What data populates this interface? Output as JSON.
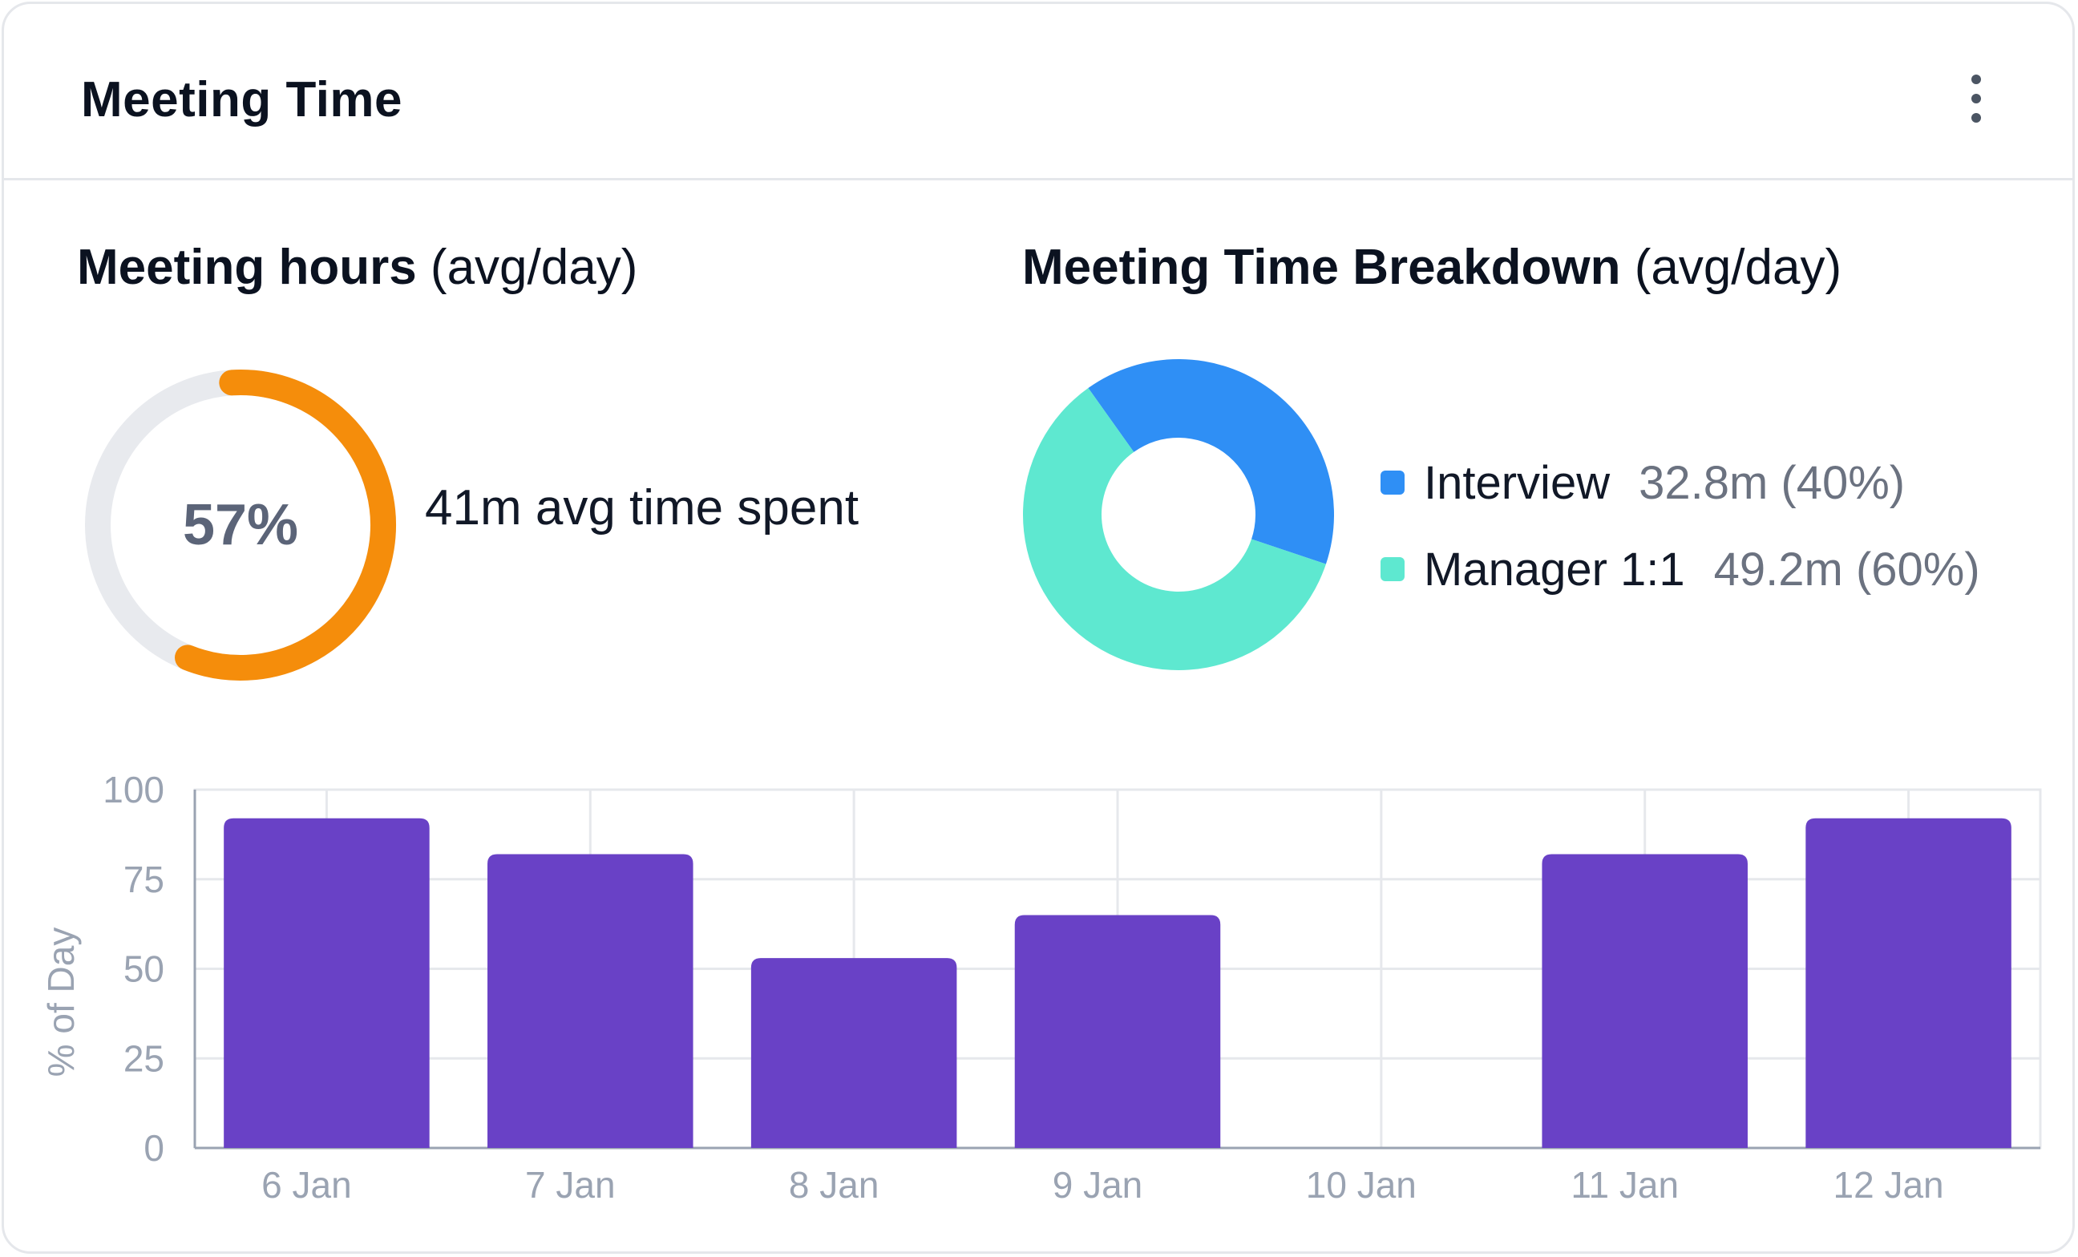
{
  "card": {
    "title": "Meeting Time",
    "menu_icon": "more-vertical-icon"
  },
  "hours": {
    "title": "Meeting hours",
    "title_suffix": "(avg/day)",
    "percent_label": "57%",
    "percent_value": 0.57,
    "caption": "41m avg time spent",
    "progress_color": "#f58d0b",
    "track_color": "#e8eaee"
  },
  "breakdown": {
    "title": "Meeting Time Breakdown",
    "title_suffix": "(avg/day)"
  },
  "colors": {
    "bar": "#6941c6",
    "grid": "#e6e8ec",
    "axis": "#9aa3b2"
  },
  "chart_data": [
    {
      "type": "pie",
      "title": "Meeting Time Breakdown (avg/day)",
      "donut": true,
      "slices": [
        {
          "label": "Interview",
          "value": 32.8,
          "display": "32.8m (40%)",
          "percent": 40,
          "color": "#2f8ff5"
        },
        {
          "label": "Manager 1:1",
          "value": 49.2,
          "display": "49.2m (60%)",
          "percent": 60,
          "color": "#5ee8d0"
        }
      ],
      "legend": "right"
    },
    {
      "type": "bar",
      "categories": [
        "6 Jan",
        "7 Jan",
        "8 Jan",
        "9 Jan",
        "10 Jan",
        "11 Jan",
        "12 Jan"
      ],
      "values": [
        92,
        82,
        53,
        65,
        0,
        82,
        92
      ],
      "ylabel": "% of Day",
      "xlabel": "",
      "ylim": [
        0,
        100
      ],
      "yticks": [
        0,
        25,
        50,
        75,
        100
      ],
      "grid": true
    }
  ]
}
